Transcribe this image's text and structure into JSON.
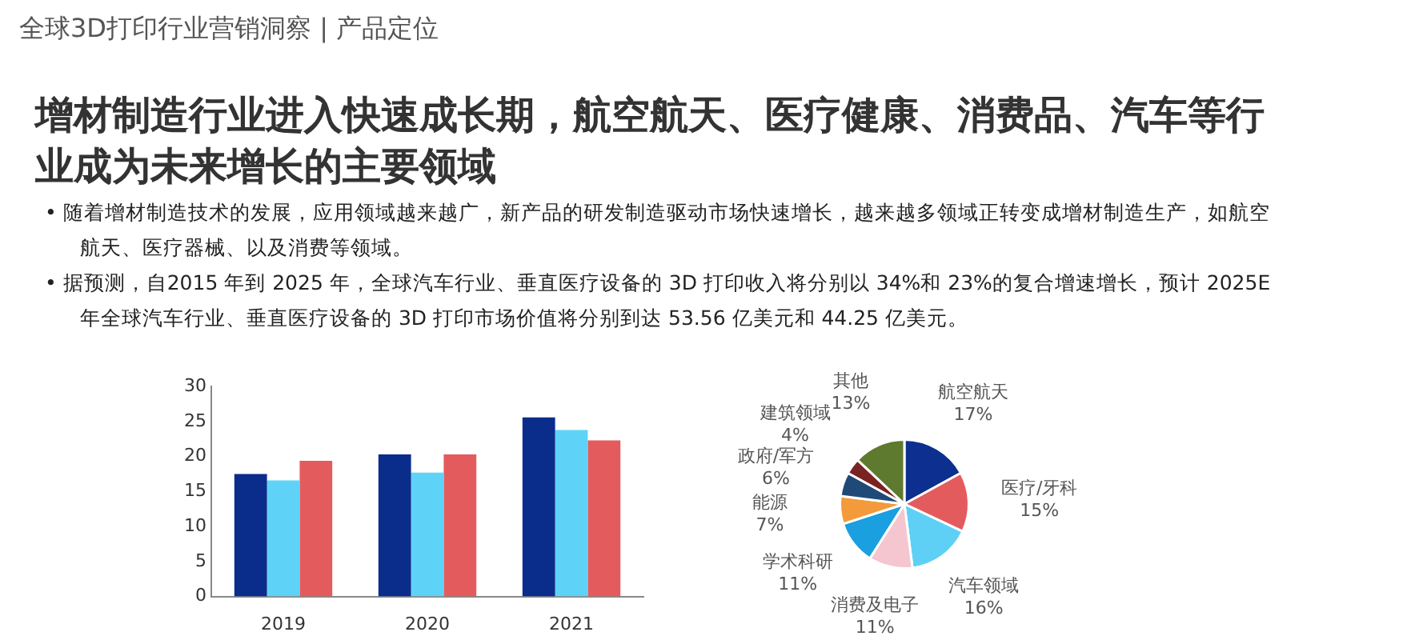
{
  "chart_data": [
    {
      "type": "bar",
      "title": "增材制造行业进入快速成长期，航空航天、医疗健康、消费品、汽车等行业成为未来增长的主要领域",
      "annotations": [
        "全球3D打印行业营销洞察 | 产品定位",
        "•  随着增材制造技术的发展，应用领域越来越广，新产品的研发制造驱动市场快速增长，越来越多领域正转变成增材制造生产，如航空航天、医疗器械、以及消费等领域。",
        "•  据预测，自2015 年到 2025 年，全球汽车行业、垂直医疗设备的 3D 打印收入将分别以 34%和 23%的复合增速增长，预计 2025E 年全球汽车行业、垂直医疗设备的 3D 打印市场价值将分别到达 53.56 亿美元和 44.25 亿美元。"
      ],
      "categories": [
        "2019",
        "2020",
        "2021"
      ],
      "series": [
        {
          "color": "#0a2d8c",
          "values": [
            17.5,
            20.3,
            25.6
          ]
        },
        {
          "color": "#5fd3f7",
          "values": [
            16.6,
            17.7,
            23.8
          ]
        },
        {
          "color": "#e45b5e",
          "values": [
            19.4,
            20.3,
            22.3
          ]
        }
      ],
      "ylim": [
        0,
        30
      ],
      "yticks": [
        0,
        5,
        10,
        15,
        20,
        25,
        30
      ],
      "grid": false,
      "legend": false
    },
    {
      "type": "pie",
      "categories": [
        "航空航天",
        "医疗/牙科",
        "汽车领域",
        "消费及电子",
        "学术科研",
        "能源",
        "政府/军方",
        "建筑领域",
        "其他"
      ],
      "values": [
        17,
        15,
        16,
        11,
        11,
        7,
        6,
        4,
        13
      ],
      "value_labels": [
        "17%",
        "15%",
        "16%",
        "11%",
        "11%",
        "7%",
        "6%",
        "4%",
        "13%"
      ],
      "colors": [
        "#0d2f8f",
        "#e45b5e",
        "#5fd0f5",
        "#f5c6cf",
        "#1a9fe0",
        "#f39a3b",
        "#1f4a78",
        "#7a2323",
        "#5e7a2e"
      ],
      "legend": false
    }
  ]
}
